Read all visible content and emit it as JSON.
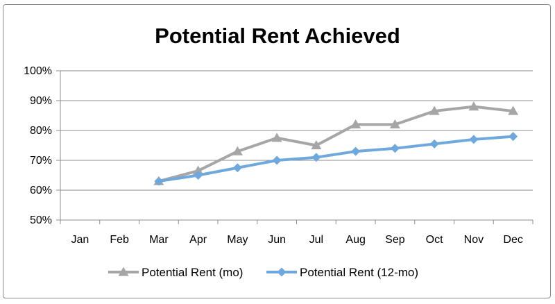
{
  "chart_data": {
    "type": "line",
    "title": "Potential Rent Achieved",
    "xlabel": "",
    "ylabel": "",
    "categories": [
      "Jan",
      "Feb",
      "Mar",
      "Apr",
      "May",
      "Jun",
      "Jul",
      "Aug",
      "Sep",
      "Oct",
      "Nov",
      "Dec"
    ],
    "ylim": [
      50,
      100
    ],
    "yticks": [
      50,
      60,
      70,
      80,
      90,
      100
    ],
    "ytick_labels": [
      "50%",
      "60%",
      "70%",
      "80%",
      "90%",
      "100%"
    ],
    "grid": true,
    "legend_position": "bottom",
    "series": [
      {
        "name": "Potential Rent (mo)",
        "color": "#a6a6a6",
        "marker": "triangle",
        "values": [
          null,
          null,
          63,
          66.5,
          73,
          77.5,
          75,
          82,
          82,
          86.5,
          88,
          86.5
        ]
      },
      {
        "name": "Potential Rent (12-mo)",
        "color": "#6fa8dc",
        "marker": "diamond",
        "values": [
          null,
          null,
          63,
          65,
          67.5,
          70,
          71,
          73,
          74,
          75.5,
          77,
          78
        ]
      }
    ]
  }
}
